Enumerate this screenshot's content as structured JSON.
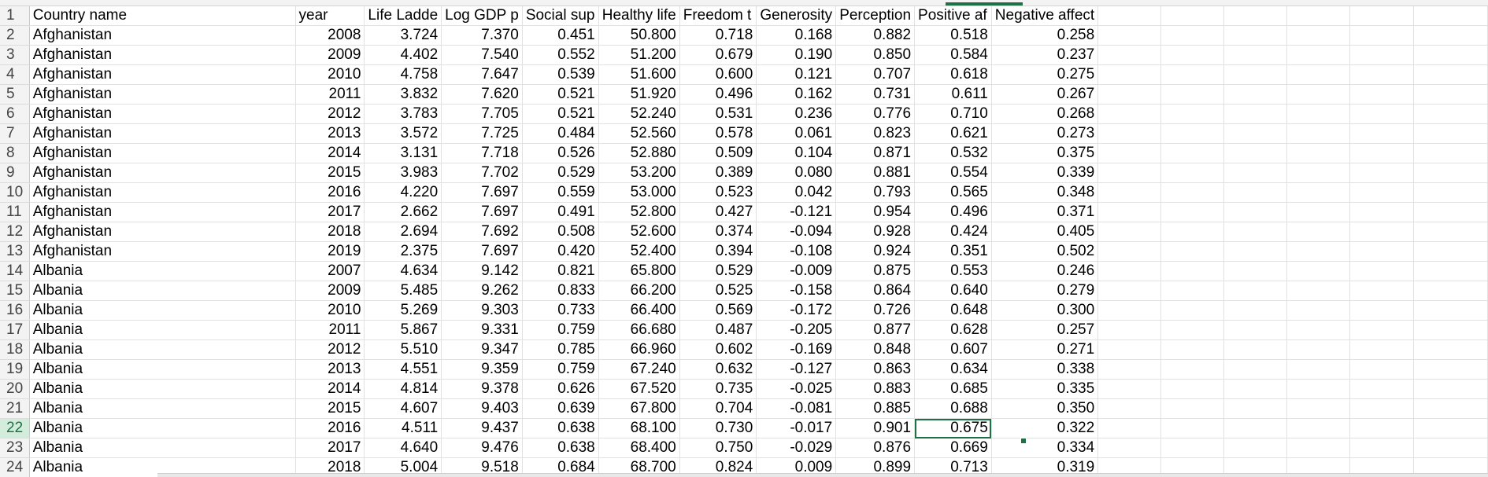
{
  "headers": [
    "Country name",
    "year",
    "Life Ladde",
    "Log GDP p",
    "Social sup",
    "Healthy life",
    "Freedom t",
    "Generosity",
    "Perception",
    "Positive af",
    "Negative affect"
  ],
  "rows": [
    {
      "n": "1",
      "cells": null
    },
    {
      "n": "2",
      "cells": [
        "Afghanistan",
        "2008",
        "3.724",
        "7.370",
        "0.451",
        "50.800",
        "0.718",
        "0.168",
        "0.882",
        "0.518",
        "0.258"
      ]
    },
    {
      "n": "3",
      "cells": [
        "Afghanistan",
        "2009",
        "4.402",
        "7.540",
        "0.552",
        "51.200",
        "0.679",
        "0.190",
        "0.850",
        "0.584",
        "0.237"
      ]
    },
    {
      "n": "4",
      "cells": [
        "Afghanistan",
        "2010",
        "4.758",
        "7.647",
        "0.539",
        "51.600",
        "0.600",
        "0.121",
        "0.707",
        "0.618",
        "0.275"
      ]
    },
    {
      "n": "5",
      "cells": [
        "Afghanistan",
        "2011",
        "3.832",
        "7.620",
        "0.521",
        "51.920",
        "0.496",
        "0.162",
        "0.731",
        "0.611",
        "0.267"
      ]
    },
    {
      "n": "6",
      "cells": [
        "Afghanistan",
        "2012",
        "3.783",
        "7.705",
        "0.521",
        "52.240",
        "0.531",
        "0.236",
        "0.776",
        "0.710",
        "0.268"
      ]
    },
    {
      "n": "7",
      "cells": [
        "Afghanistan",
        "2013",
        "3.572",
        "7.725",
        "0.484",
        "52.560",
        "0.578",
        "0.061",
        "0.823",
        "0.621",
        "0.273"
      ]
    },
    {
      "n": "8",
      "cells": [
        "Afghanistan",
        "2014",
        "3.131",
        "7.718",
        "0.526",
        "52.880",
        "0.509",
        "0.104",
        "0.871",
        "0.532",
        "0.375"
      ]
    },
    {
      "n": "9",
      "cells": [
        "Afghanistan",
        "2015",
        "3.983",
        "7.702",
        "0.529",
        "53.200",
        "0.389",
        "0.080",
        "0.881",
        "0.554",
        "0.339"
      ]
    },
    {
      "n": "10",
      "cells": [
        "Afghanistan",
        "2016",
        "4.220",
        "7.697",
        "0.559",
        "53.000",
        "0.523",
        "0.042",
        "0.793",
        "0.565",
        "0.348"
      ]
    },
    {
      "n": "11",
      "cells": [
        "Afghanistan",
        "2017",
        "2.662",
        "7.697",
        "0.491",
        "52.800",
        "0.427",
        "-0.121",
        "0.954",
        "0.496",
        "0.371"
      ]
    },
    {
      "n": "12",
      "cells": [
        "Afghanistan",
        "2018",
        "2.694",
        "7.692",
        "0.508",
        "52.600",
        "0.374",
        "-0.094",
        "0.928",
        "0.424",
        "0.405"
      ]
    },
    {
      "n": "13",
      "cells": [
        "Afghanistan",
        "2019",
        "2.375",
        "7.697",
        "0.420",
        "52.400",
        "0.394",
        "-0.108",
        "0.924",
        "0.351",
        "0.502"
      ]
    },
    {
      "n": "14",
      "cells": [
        "Albania",
        "2007",
        "4.634",
        "9.142",
        "0.821",
        "65.800",
        "0.529",
        "-0.009",
        "0.875",
        "0.553",
        "0.246"
      ]
    },
    {
      "n": "15",
      "cells": [
        "Albania",
        "2009",
        "5.485",
        "9.262",
        "0.833",
        "66.200",
        "0.525",
        "-0.158",
        "0.864",
        "0.640",
        "0.279"
      ]
    },
    {
      "n": "16",
      "cells": [
        "Albania",
        "2010",
        "5.269",
        "9.303",
        "0.733",
        "66.400",
        "0.569",
        "-0.172",
        "0.726",
        "0.648",
        "0.300"
      ]
    },
    {
      "n": "17",
      "cells": [
        "Albania",
        "2011",
        "5.867",
        "9.331",
        "0.759",
        "66.680",
        "0.487",
        "-0.205",
        "0.877",
        "0.628",
        "0.257"
      ]
    },
    {
      "n": "18",
      "cells": [
        "Albania",
        "2012",
        "5.510",
        "9.347",
        "0.785",
        "66.960",
        "0.602",
        "-0.169",
        "0.848",
        "0.607",
        "0.271"
      ]
    },
    {
      "n": "19",
      "cells": [
        "Albania",
        "2013",
        "4.551",
        "9.359",
        "0.759",
        "67.240",
        "0.632",
        "-0.127",
        "0.863",
        "0.634",
        "0.338"
      ]
    },
    {
      "n": "20",
      "cells": [
        "Albania",
        "2014",
        "4.814",
        "9.378",
        "0.626",
        "67.520",
        "0.735",
        "-0.025",
        "0.883",
        "0.685",
        "0.335"
      ]
    },
    {
      "n": "21",
      "cells": [
        "Albania",
        "2015",
        "4.607",
        "9.403",
        "0.639",
        "67.800",
        "0.704",
        "-0.081",
        "0.885",
        "0.688",
        "0.350"
      ]
    },
    {
      "n": "22",
      "cells": [
        "Albania",
        "2016",
        "4.511",
        "9.437",
        "0.638",
        "68.100",
        "0.730",
        "-0.017",
        "0.901",
        "0.675",
        "0.322"
      ]
    },
    {
      "n": "23",
      "cells": [
        "Albania",
        "2017",
        "4.640",
        "9.476",
        "0.638",
        "68.400",
        "0.750",
        "-0.029",
        "0.876",
        "0.669",
        "0.334"
      ]
    },
    {
      "n": "24",
      "cells": [
        "Albania",
        "2018",
        "5.004",
        "9.518",
        "0.684",
        "68.700",
        "0.824",
        "0.009",
        "0.899",
        "0.713",
        "0.319"
      ]
    }
  ],
  "active_cell": "J22",
  "colors": {
    "accent": "#1e7145",
    "grid": "#e1e1e1",
    "header_bg": "#f3f3f3",
    "selected_header_bg": "#d3ecdc"
  }
}
